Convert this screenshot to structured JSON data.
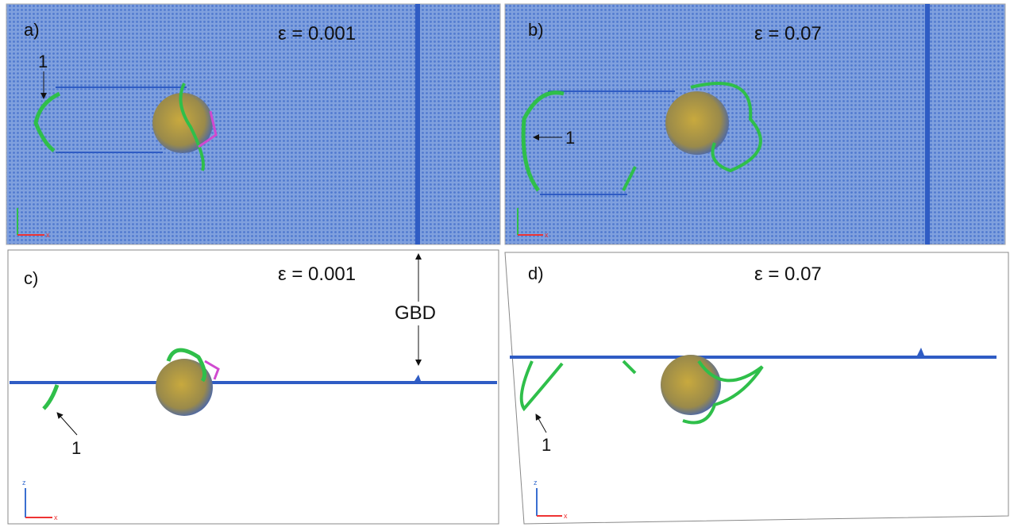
{
  "panels": [
    {
      "label": "a)",
      "strain": "ε = 0.001",
      "marker": "1",
      "axes": [
        "x"
      ]
    },
    {
      "label": "b)",
      "strain": "ε = 0.07",
      "marker": "1",
      "axes": [
        "x"
      ]
    },
    {
      "label": "c)",
      "strain": "ε = 0.001",
      "marker": "1",
      "axes": [
        "z",
        "x"
      ]
    },
    {
      "label": "d)",
      "strain": "ε = 0.07",
      "marker": "1",
      "axes": [
        "z",
        "x"
      ]
    }
  ],
  "annotation": "GBD"
}
